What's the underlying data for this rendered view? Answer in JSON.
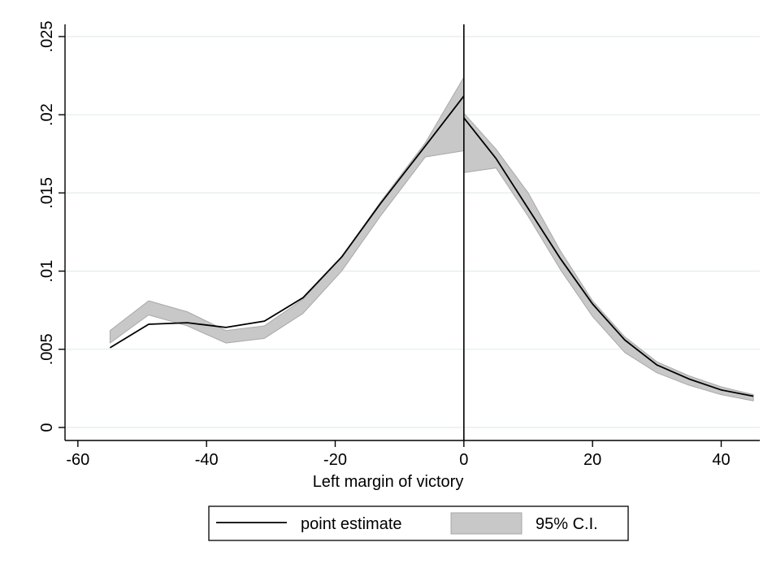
{
  "chart_data": {
    "type": "line",
    "title": "",
    "xlabel": "Left margin of victory",
    "ylabel": "",
    "xlim": [
      -62,
      46
    ],
    "ylim": [
      0,
      0.025
    ],
    "x_ticks": [
      -60,
      -40,
      -20,
      0,
      20,
      40
    ],
    "x_tick_labels": [
      "-60",
      "-40",
      "-20",
      "0",
      "20",
      "40"
    ],
    "y_ticks": [
      0,
      0.005,
      0.01,
      0.015,
      0.02,
      0.025
    ],
    "y_tick_labels": [
      "0",
      ".005",
      ".01",
      ".015",
      ".02",
      ".025"
    ],
    "grid": "horizontal",
    "cutoff": 0,
    "legend_position": "bottom",
    "series": [
      {
        "name": "point estimate",
        "segment": "left",
        "x": [
          -55,
          -49,
          -43,
          -37,
          -31,
          -25,
          -19,
          -13,
          -6,
          0
        ],
        "values": [
          0.0051,
          0.0066,
          0.0067,
          0.0064,
          0.0068,
          0.0083,
          0.0109,
          0.0143,
          0.018,
          0.0212
        ]
      },
      {
        "name": "point estimate",
        "segment": "right",
        "x": [
          0,
          5,
          10,
          15,
          20,
          25,
          30,
          35,
          40,
          45
        ],
        "values": [
          0.0198,
          0.0172,
          0.014,
          0.0108,
          0.0079,
          0.0056,
          0.004,
          0.0031,
          0.0024,
          0.002
        ]
      }
    ],
    "ci_band": [
      {
        "name": "95% C.I.",
        "segment": "left",
        "x": [
          -55,
          -49,
          -43,
          -37,
          -31,
          -25,
          -19,
          -13,
          -6,
          0
        ],
        "lower": [
          0.0054,
          0.0072,
          0.0065,
          0.0054,
          0.0057,
          0.0073,
          0.01,
          0.0135,
          0.0173,
          0.0177
        ],
        "upper": [
          0.0062,
          0.0081,
          0.0074,
          0.0062,
          0.0065,
          0.0082,
          0.0109,
          0.0144,
          0.0182,
          0.0224
        ]
      },
      {
        "name": "95% C.I.",
        "segment": "right",
        "x": [
          0,
          5,
          10,
          15,
          20,
          25,
          30,
          35,
          40,
          45
        ],
        "lower": [
          0.0163,
          0.0166,
          0.0135,
          0.0101,
          0.0071,
          0.0048,
          0.0035,
          0.0027,
          0.0021,
          0.0017
        ],
        "upper": [
          0.0201,
          0.0178,
          0.015,
          0.0113,
          0.0081,
          0.0058,
          0.0042,
          0.0033,
          0.0026,
          0.0021
        ]
      }
    ],
    "legend": [
      {
        "label": "point estimate",
        "kind": "line"
      },
      {
        "label": "95% C.I.",
        "kind": "area"
      }
    ],
    "colors": {
      "line": "#000000",
      "band": "#c8c8c8",
      "band_edge": "#a8a8a8",
      "grid": "#e3ecec",
      "axis": "#000000"
    }
  }
}
